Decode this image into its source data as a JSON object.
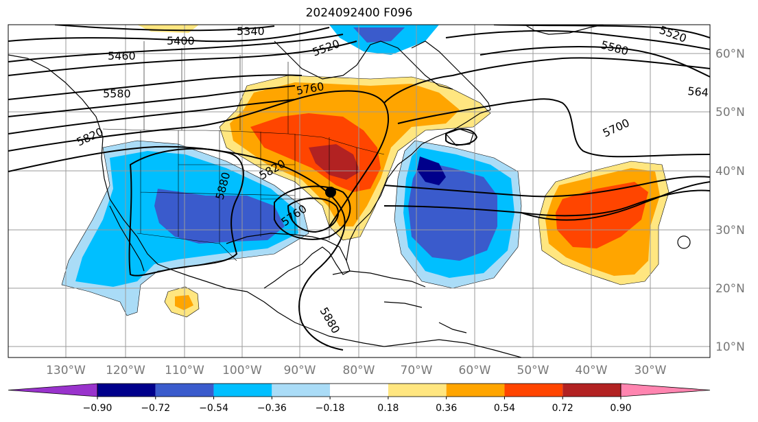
{
  "title": "2024092400 F096",
  "lon_ticks": [
    "130°W",
    "120°W",
    "110°W",
    "100°W",
    "90°W",
    "80°W",
    "70°W",
    "60°W",
    "50°W",
    "40°W",
    "30°W"
  ],
  "lat_ticks": [
    "60°N",
    "50°N",
    "40°N",
    "30°N",
    "20°N",
    "10°N"
  ],
  "colorbar": {
    "levels": [
      "−0.90",
      "−0.72",
      "−0.54",
      "−0.36",
      "−0.18",
      "0.18",
      "0.36",
      "0.54",
      "0.72",
      "0.90"
    ],
    "colors": [
      "#9933cc",
      "#00008b",
      "#3a5bcc",
      "#00bfff",
      "#aadcf7",
      "#ffffff",
      "#ffe680",
      "#ffa500",
      "#ff4500",
      "#b22222",
      "#ff85b0"
    ]
  },
  "contour_labels": [
    "5340",
    "5400",
    "5460",
    "5520",
    "5520",
    "5580",
    "5580",
    "564",
    "5700",
    "5760",
    "5820",
    "5820",
    "5880",
    "5760",
    "5880"
  ],
  "marker": "storm-center-dot"
}
